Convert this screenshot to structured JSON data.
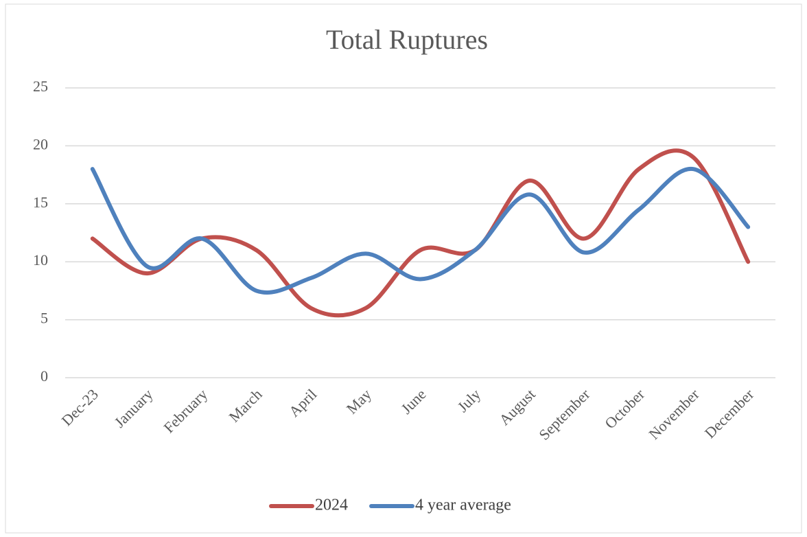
{
  "chart_data": {
    "type": "line",
    "title": "Total Ruptures",
    "categories": [
      "Dec-23",
      "January",
      "February",
      "March",
      "April",
      "May",
      "June",
      "July",
      "August",
      "September",
      "October",
      "November",
      "December"
    ],
    "series": [
      {
        "name": "2024",
        "color": "#c0504d",
        "values": [
          12,
          9,
          12,
          11,
          6,
          6,
          11,
          11,
          17,
          12,
          18,
          19,
          10
        ]
      },
      {
        "name": "4 year average",
        "color": "#4f81bd",
        "values": [
          18,
          9.6,
          12,
          7.5,
          8.6,
          10.7,
          8.5,
          11,
          15.8,
          10.8,
          14.5,
          18,
          13
        ]
      }
    ],
    "ylim": [
      0,
      25
    ],
    "yticks": [
      0,
      5,
      10,
      15,
      20,
      25
    ],
    "grid": true,
    "smooth": true,
    "legend": "bottom"
  }
}
